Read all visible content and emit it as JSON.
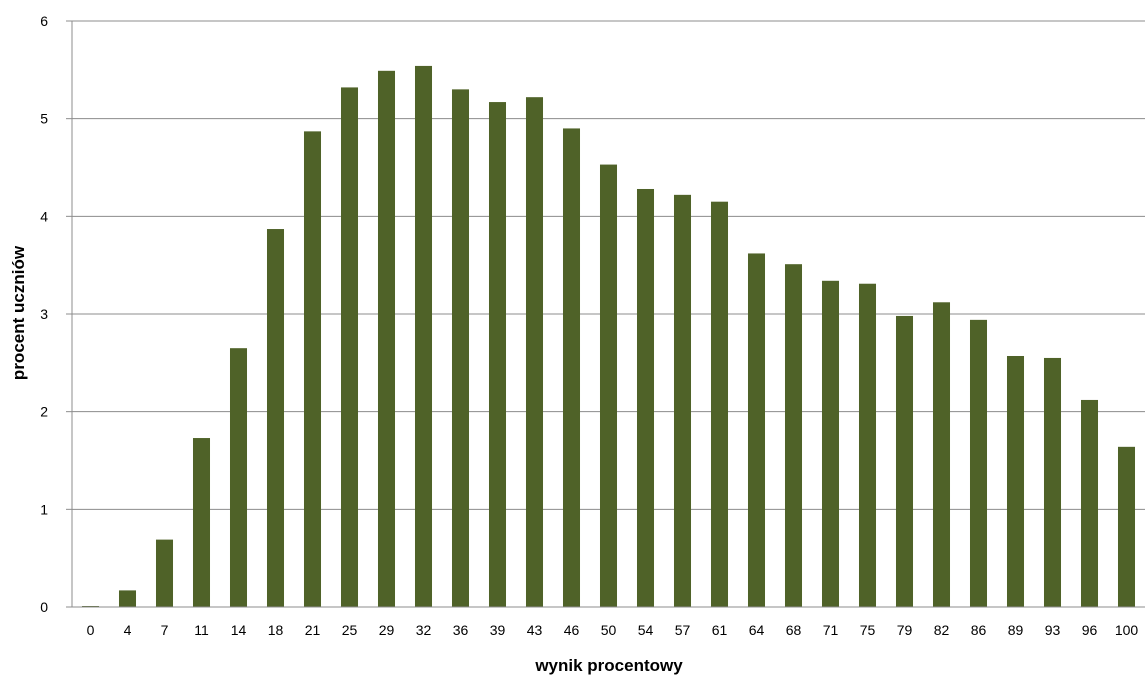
{
  "chart_data": {
    "type": "bar",
    "title": "",
    "xlabel": "wynik procentowy",
    "ylabel": "procent uczniów",
    "ylim": [
      0,
      6
    ],
    "yticks": [
      0,
      1,
      2,
      3,
      4,
      5,
      6
    ],
    "grid": true,
    "legend": "none",
    "bar_color": "#4f6228",
    "categories": [
      "0",
      "4",
      "7",
      "11",
      "14",
      "18",
      "21",
      "25",
      "29",
      "32",
      "36",
      "39",
      "43",
      "46",
      "50",
      "54",
      "57",
      "61",
      "64",
      "68",
      "71",
      "75",
      "79",
      "82",
      "86",
      "89",
      "93",
      "96",
      "100"
    ],
    "values": [
      0.01,
      0.17,
      0.69,
      1.73,
      2.65,
      3.87,
      4.87,
      5.32,
      5.49,
      5.54,
      5.3,
      5.17,
      5.22,
      4.9,
      4.53,
      4.28,
      4.22,
      4.15,
      3.62,
      3.51,
      3.34,
      3.31,
      2.98,
      3.12,
      2.94,
      2.57,
      2.55,
      2.12,
      1.64
    ]
  }
}
